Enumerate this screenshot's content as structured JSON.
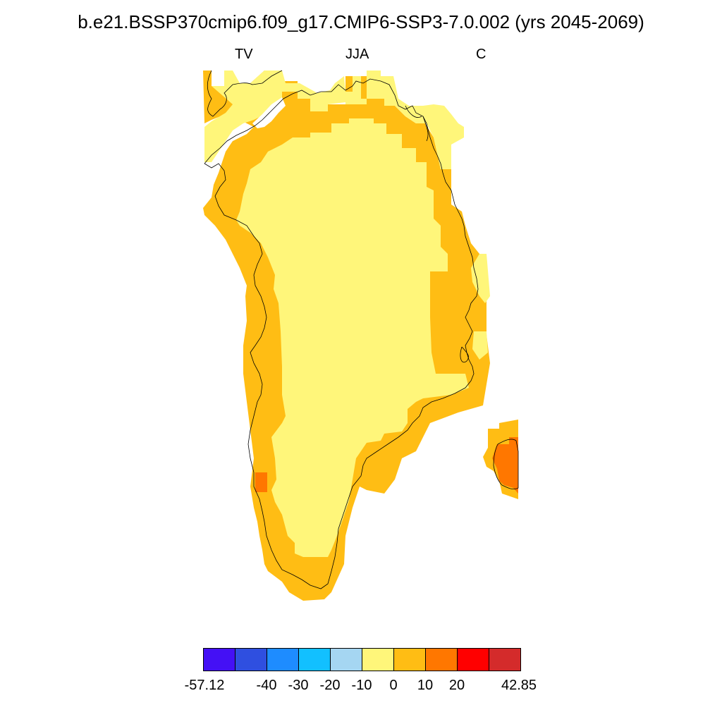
{
  "title": "b.e21.BSSP370cmip6.f09_g17.CMIP6-SSP3-7.0.002 (yrs 2045-2069)",
  "subtitle": {
    "left": "TV",
    "center": "JJA",
    "right": "C"
  },
  "colorbar": {
    "colors": [
      "#4410f5",
      "#2f4fe0",
      "#1e8cff",
      "#12c0ff",
      "#a5d6f2",
      "#fff67a",
      "#ffbd14",
      "#ff7700",
      "#ff0000",
      "#d42b2b"
    ],
    "labels": [
      "-57.12",
      "-40",
      "-30",
      "-20",
      "-10",
      "0",
      "10",
      "20",
      "42.85"
    ],
    "label_boundaries": [
      0,
      2,
      3,
      4,
      5,
      6,
      7,
      8,
      10
    ]
  },
  "map_fill_colors": {
    "outer": "#ffbd14",
    "inner": "#fff67a",
    "hot": "#ff7700"
  }
}
